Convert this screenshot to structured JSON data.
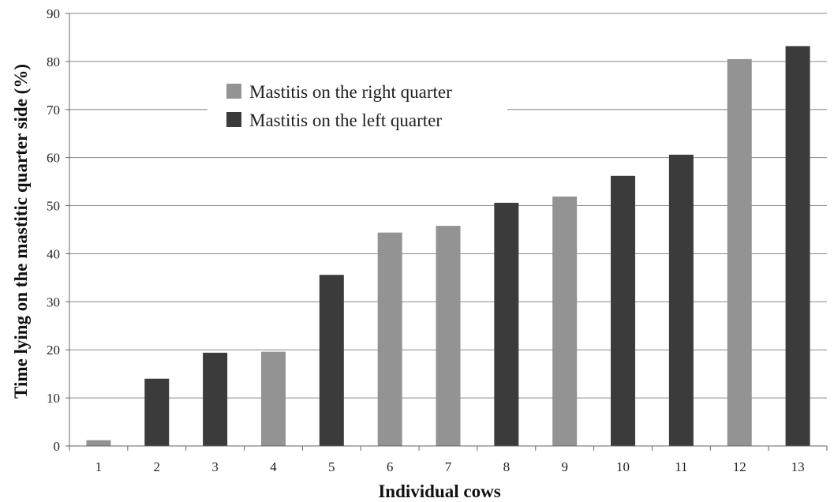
{
  "chart_data": {
    "type": "bar",
    "xlabel": "Individual cows",
    "ylabel": "Time lying on the mastitic quarter side (%)",
    "ylim": [
      0,
      90
    ],
    "yticks": [
      0,
      10,
      20,
      30,
      40,
      50,
      60,
      70,
      80,
      90
    ],
    "grid": true,
    "legend_position": "upper-left",
    "categories": [
      "1",
      "2",
      "3",
      "4",
      "5",
      "6",
      "7",
      "8",
      "9",
      "10",
      "11",
      "12",
      "13"
    ],
    "values": [
      1.2,
      14,
      19.4,
      19.6,
      35.6,
      44.4,
      45.8,
      50.6,
      51.9,
      56.2,
      60.6,
      80.5,
      83.2
    ],
    "series_index": [
      0,
      1,
      1,
      0,
      1,
      0,
      0,
      1,
      0,
      1,
      1,
      0,
      1
    ],
    "series": [
      {
        "name": "Mastitis on the right quarter",
        "color": "#939393"
      },
      {
        "name": "Mastitis on the left quarter",
        "color": "#3b3b3b"
      }
    ]
  }
}
